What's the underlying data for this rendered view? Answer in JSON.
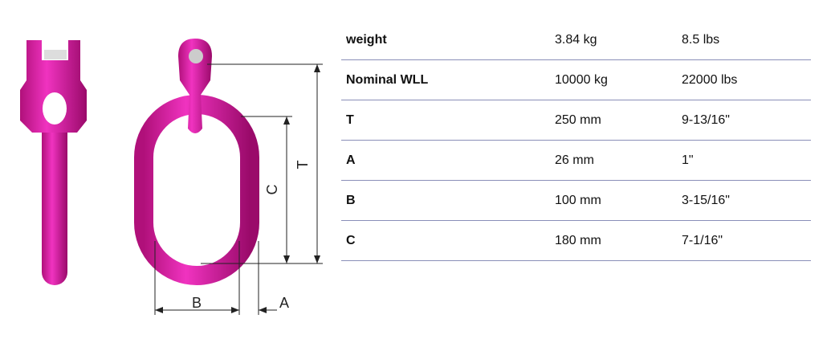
{
  "diagram": {
    "labels": {
      "T": "T",
      "C": "C",
      "B": "B",
      "A": "A"
    }
  },
  "table": {
    "rows": [
      [
        "weight",
        "3.84 kg",
        "8.5 lbs"
      ],
      [
        "Nominal WLL",
        "10000 kg",
        "22000 lbs"
      ],
      [
        "T",
        "250 mm",
        "9-13/16\""
      ],
      [
        "A",
        "26 mm",
        "1\""
      ],
      [
        "B",
        "100 mm",
        "3-15/16\""
      ],
      [
        "C",
        "180 mm",
        "7-1/16\""
      ]
    ]
  }
}
